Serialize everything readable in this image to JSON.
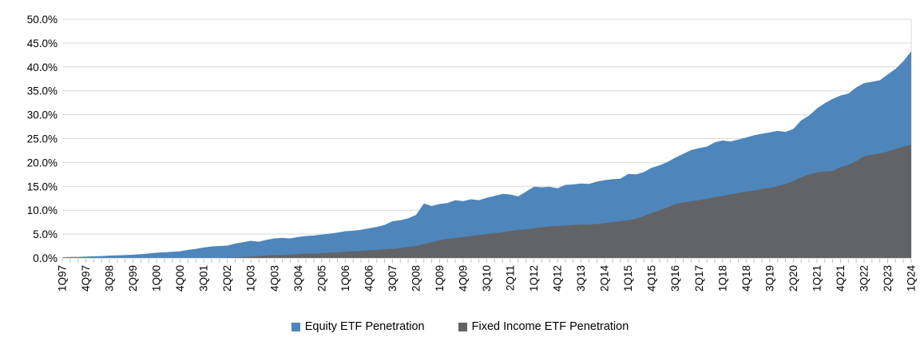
{
  "chart_data": {
    "type": "area",
    "overlay": true,
    "title": "",
    "xlabel": "",
    "ylabel": "",
    "ylim": [
      0,
      50
    ],
    "ytick_step": 5,
    "ytick_labels": [
      "0.0%",
      "5.0%",
      "10.0%",
      "15.0%",
      "20.0%",
      "25.0%",
      "30.0%",
      "35.0%",
      "40.0%",
      "45.0%",
      "50.0%"
    ],
    "grid": true,
    "legend_position": "bottom",
    "x_label_every": 3,
    "x_tick_labels_shown": [
      "1Q97",
      "4Q97",
      "3Q98",
      "2Q99",
      "1Q00",
      "4Q00",
      "3Q01",
      "2Q02",
      "1Q03",
      "4Q03",
      "3Q04",
      "2Q05",
      "1Q06",
      "4Q06",
      "3Q07",
      "2Q08",
      "1Q09",
      "4Q09",
      "3Q10",
      "2Q11",
      "1Q12",
      "4Q12",
      "3Q13",
      "2Q14",
      "1Q15",
      "4Q15",
      "3Q16",
      "2Q17",
      "1Q18",
      "4Q18",
      "3Q19",
      "2Q20",
      "1Q21",
      "4Q21",
      "3Q22",
      "2Q23",
      "1Q24"
    ],
    "x_labels": [
      "1Q97",
      "2Q97",
      "3Q97",
      "4Q97",
      "1Q98",
      "2Q98",
      "3Q98",
      "4Q98",
      "1Q99",
      "2Q99",
      "3Q99",
      "4Q99",
      "1Q00",
      "2Q00",
      "3Q00",
      "4Q00",
      "1Q01",
      "2Q01",
      "3Q01",
      "4Q01",
      "1Q02",
      "2Q02",
      "3Q02",
      "4Q02",
      "1Q03",
      "2Q03",
      "3Q03",
      "4Q03",
      "1Q04",
      "2Q04",
      "3Q04",
      "4Q04",
      "1Q05",
      "2Q05",
      "3Q05",
      "4Q05",
      "1Q06",
      "2Q06",
      "3Q06",
      "4Q06",
      "1Q07",
      "2Q07",
      "3Q07",
      "4Q07",
      "1Q08",
      "2Q08",
      "3Q08",
      "4Q08",
      "1Q09",
      "2Q09",
      "3Q09",
      "4Q09",
      "1Q10",
      "2Q10",
      "3Q10",
      "4Q10",
      "1Q11",
      "2Q11",
      "3Q11",
      "4Q11",
      "1Q12",
      "2Q12",
      "3Q12",
      "4Q12",
      "1Q13",
      "2Q13",
      "3Q13",
      "4Q13",
      "1Q14",
      "2Q14",
      "3Q14",
      "4Q14",
      "1Q15",
      "2Q15",
      "3Q15",
      "4Q15",
      "1Q16",
      "2Q16",
      "3Q16",
      "4Q16",
      "1Q17",
      "2Q17",
      "3Q17",
      "4Q17",
      "1Q18",
      "2Q18",
      "3Q18",
      "4Q18",
      "1Q19",
      "2Q19",
      "3Q19",
      "4Q19",
      "1Q20",
      "2Q20",
      "3Q20",
      "4Q20",
      "1Q21",
      "2Q21",
      "3Q21",
      "4Q21",
      "1Q22",
      "2Q22",
      "3Q22",
      "4Q22",
      "1Q23",
      "2Q23",
      "3Q23",
      "4Q23",
      "1Q24"
    ],
    "series": [
      {
        "name": "Equity ETF Penetration",
        "color": "#4E86BC",
        "unit": "%",
        "values": [
          0.15,
          0.2,
          0.22,
          0.3,
          0.35,
          0.4,
          0.5,
          0.55,
          0.6,
          0.7,
          0.8,
          0.95,
          1.1,
          1.2,
          1.3,
          1.4,
          1.7,
          1.9,
          2.2,
          2.4,
          2.5,
          2.6,
          3.0,
          3.3,
          3.6,
          3.4,
          3.8,
          4.1,
          4.2,
          4.1,
          4.4,
          4.6,
          4.7,
          4.9,
          5.1,
          5.3,
          5.6,
          5.7,
          5.9,
          6.2,
          6.5,
          6.9,
          7.7,
          7.9,
          8.3,
          9.0,
          11.4,
          10.9,
          11.3,
          11.5,
          12.1,
          11.9,
          12.3,
          12.1,
          12.6,
          13.0,
          13.4,
          13.3,
          12.9,
          13.9,
          14.9,
          14.8,
          14.9,
          14.6,
          15.3,
          15.4,
          15.6,
          15.5,
          16.0,
          16.3,
          16.5,
          16.6,
          17.6,
          17.5,
          18.0,
          18.9,
          19.4,
          20.1,
          21.0,
          21.8,
          22.6,
          23.0,
          23.3,
          24.2,
          24.6,
          24.4,
          24.8,
          25.2,
          25.7,
          26.0,
          26.3,
          26.6,
          26.4,
          27.0,
          28.8,
          29.8,
          31.3,
          32.4,
          33.3,
          34.0,
          34.4,
          35.7,
          36.6,
          36.9,
          37.2,
          38.4,
          39.6,
          41.2,
          43.3
        ]
      },
      {
        "name": "Fixed Income ETF Penetration",
        "color": "#626366",
        "unit": "%",
        "values": [
          0,
          0,
          0,
          0,
          0,
          0,
          0,
          0,
          0,
          0,
          0,
          0,
          0,
          0,
          0,
          0,
          0,
          0,
          0,
          0,
          0,
          0.05,
          0.1,
          0.2,
          0.3,
          0.4,
          0.5,
          0.6,
          0.6,
          0.7,
          0.8,
          0.9,
          0.9,
          1.0,
          1.1,
          1.2,
          1.3,
          1.4,
          1.5,
          1.6,
          1.7,
          1.8,
          1.9,
          2.1,
          2.3,
          2.5,
          2.9,
          3.3,
          3.7,
          4.0,
          4.2,
          4.4,
          4.6,
          4.8,
          5.0,
          5.2,
          5.4,
          5.6,
          5.9,
          6.0,
          6.2,
          6.4,
          6.6,
          6.7,
          6.8,
          6.9,
          7.0,
          7.0,
          7.1,
          7.3,
          7.5,
          7.7,
          7.9,
          8.2,
          8.8,
          9.4,
          10.0,
          10.6,
          11.3,
          11.6,
          11.9,
          12.1,
          12.4,
          12.7,
          13.0,
          13.3,
          13.6,
          13.9,
          14.1,
          14.4,
          14.7,
          15.0,
          15.5,
          16.1,
          16.9,
          17.5,
          17.9,
          18.1,
          18.2,
          19.0,
          19.5,
          20.3,
          21.3,
          21.6,
          21.9,
          22.3,
          22.8,
          23.3,
          23.7
        ]
      }
    ],
    "colors": {
      "gridline": "#D9D9D9",
      "axis_line": "#C6C6C6",
      "tick": "#BFBFBF",
      "text": "#000000",
      "background": "#FFFFFF"
    }
  },
  "legend": {
    "items": [
      {
        "label": "Equity ETF Penetration"
      },
      {
        "label": "Fixed Income ETF Penetration"
      }
    ]
  }
}
